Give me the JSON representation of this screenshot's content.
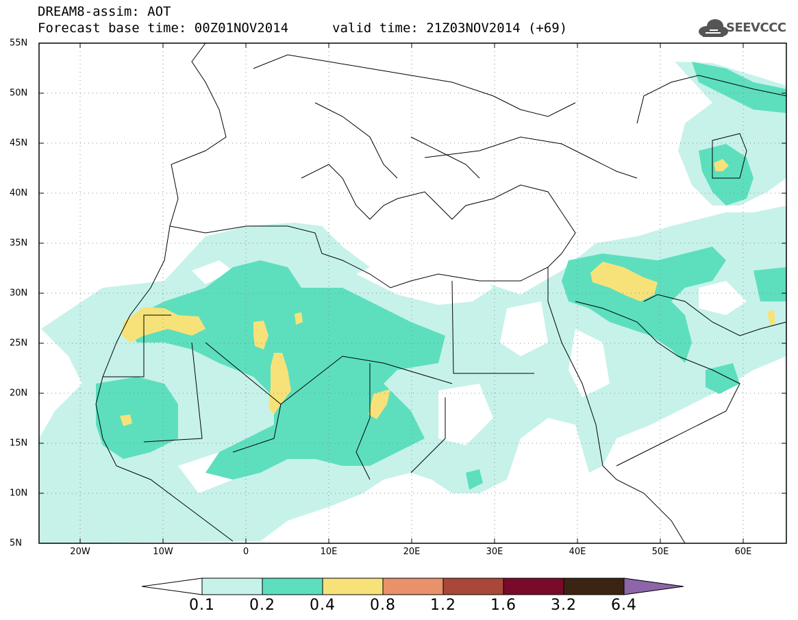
{
  "header": {
    "title": "DREAM8-assim: AOT",
    "base_time": "Forecast base time: 00Z01NOV2014",
    "valid_time": "valid time: 21Z03NOV2014 (+69)",
    "logo_text": "SEEVCCC",
    "logo_icon": "cloud-icon"
  },
  "map": {
    "lon_range": [
      -25,
      65
    ],
    "lat_range": [
      5,
      55
    ],
    "x_ticks": [
      "20W",
      "10W",
      "0",
      "10E",
      "20E",
      "30E",
      "40E",
      "50E",
      "60E"
    ],
    "y_ticks": [
      "55N",
      "50N",
      "45N",
      "40N",
      "35N",
      "30N",
      "25N",
      "20N",
      "15N",
      "10N",
      "5N"
    ],
    "grid": "dotted"
  },
  "colorbar": {
    "levels": [
      "0.1",
      "0.2",
      "0.4",
      "0.8",
      "1.2",
      "1.6",
      "3.2",
      "6.4"
    ],
    "colors": [
      "#ffffff",
      "#c6f2ea",
      "#5ddfbd",
      "#f7e27a",
      "#e8916a",
      "#a94838",
      "#7a0a2a",
      "#3b2412",
      "#8c66a8"
    ]
  }
}
